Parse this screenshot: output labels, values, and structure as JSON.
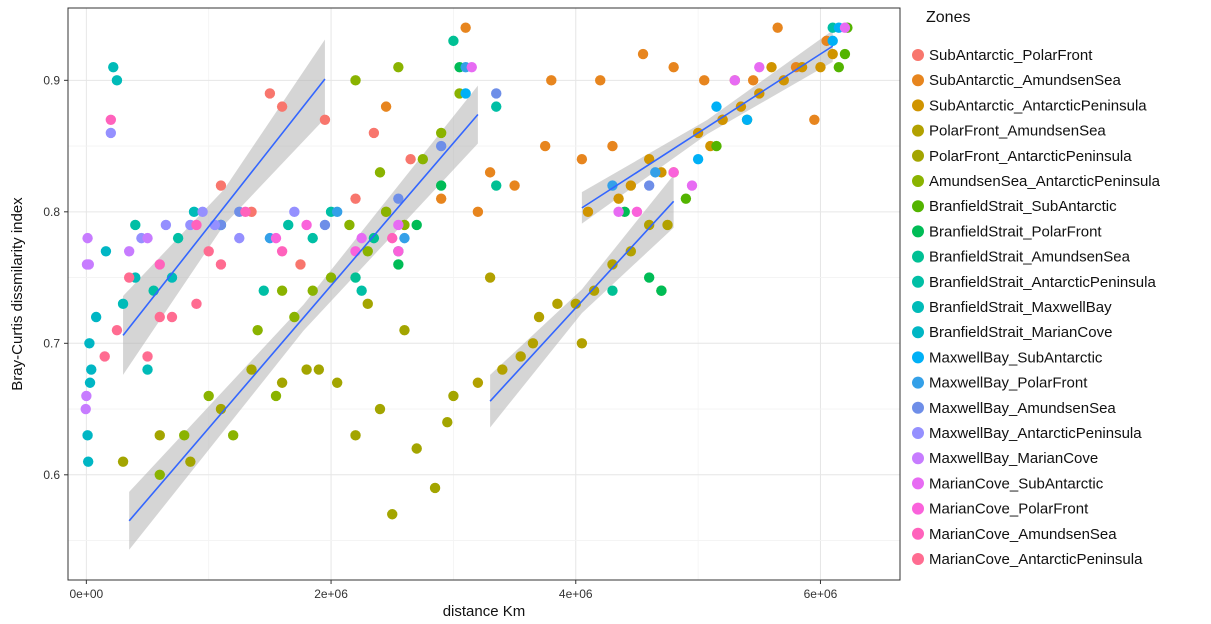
{
  "chart_data": {
    "type": "scatter",
    "xlabel": "distance Km",
    "ylabel": "Bray-Curtis dissmilarity index",
    "xlim": [
      -150000,
      6650000
    ],
    "ylim": [
      0.52,
      0.955
    ],
    "x_ticks": [
      0,
      2000000,
      4000000,
      6000000
    ],
    "x_tick_labels": [
      "0e+00",
      "2e+06",
      "4e+06",
      "6e+06"
    ],
    "y_ticks": [
      0.6,
      0.7,
      0.8,
      0.9
    ],
    "y_tick_labels": [
      "0.6",
      "0.7",
      "0.8",
      "0.9"
    ],
    "grid": true,
    "legend": {
      "title": "Zones",
      "placement": "right",
      "entries": [
        {
          "name": "SubAntarctic_PolarFront",
          "color": "#f8766d"
        },
        {
          "name": "SubAntarctic_AmundsenSea",
          "color": "#e7851e"
        },
        {
          "name": "SubAntarctic_AntarcticPeninsula",
          "color": "#d09400"
        },
        {
          "name": "PolarFront_AmundsenSea",
          "color": "#b2a100"
        },
        {
          "name": "PolarFront_AntarcticPeninsula",
          "color": "#a3a500"
        },
        {
          "name": "AmundsenSea_AntarcticPeninsula",
          "color": "#8ab300"
        },
        {
          "name": "BranfieldStrait_SubAntarctic",
          "color": "#53b400"
        },
        {
          "name": "BranfieldStrait_PolarFront",
          "color": "#00bc56"
        },
        {
          "name": "BranfieldStrait_AmundsenSea",
          "color": "#00c094"
        },
        {
          "name": "BranfieldStrait_AntarcticPeninsula",
          "color": "#00bfa5"
        },
        {
          "name": "BranfieldStrait_MaxwellBay",
          "color": "#00bbb8"
        },
        {
          "name": "BranfieldStrait_MarianCove",
          "color": "#00b6c4"
        },
        {
          "name": "MaxwellBay_SubAntarctic",
          "color": "#00b0f6"
        },
        {
          "name": "MaxwellBay_PolarFront",
          "color": "#34a0e8"
        },
        {
          "name": "MaxwellBay_AmundsenSea",
          "color": "#6e8ee8"
        },
        {
          "name": "MaxwellBay_AntarcticPeninsula",
          "color": "#9590ff"
        },
        {
          "name": "MaxwellBay_MarianCove",
          "color": "#c77cff"
        },
        {
          "name": "MarianCove_SubAntarctic",
          "color": "#e76bf3"
        },
        {
          "name": "MarianCove_PolarFront",
          "color": "#fa62db"
        },
        {
          "name": "MarianCove_AmundsenSea",
          "color": "#ff62bc"
        },
        {
          "name": "MarianCove_AntarcticPeninsula",
          "color": "#ff6c91"
        }
      ]
    },
    "regression_lines": [
      {
        "x": [
          300000,
          1950000
        ],
        "y": [
          0.706,
          0.901
        ],
        "band": 0.03
      },
      {
        "x": [
          350000,
          3200000
        ],
        "y": [
          0.565,
          0.874
        ],
        "band": 0.022
      },
      {
        "x": [
          3300000,
          4800000
        ],
        "y": [
          0.656,
          0.808
        ],
        "band": 0.02
      },
      {
        "x": [
          4050000,
          6100000
        ],
        "y": [
          0.803,
          0.926
        ],
        "band": 0.012
      }
    ],
    "series": [
      {
        "name": "SubAntarctic_PolarFront",
        "x": [
          1100000,
          1350000,
          1600000,
          1750000,
          1950000,
          2200000,
          2450000,
          2650000,
          2350000,
          1500000
        ],
        "y": [
          0.82,
          0.8,
          0.88,
          0.76,
          0.87,
          0.81,
          0.8,
          0.84,
          0.86,
          0.89
        ]
      },
      {
        "name": "SubAntarctic_AmundsenSea",
        "x": [
          2450000,
          2900000,
          3100000,
          3200000,
          3300000,
          3750000,
          4050000,
          4300000,
          4550000,
          4800000,
          5050000,
          5200000,
          5450000,
          5650000,
          5800000,
          5950000,
          6050000,
          3500000,
          3800000,
          4200000
        ],
        "y": [
          0.88,
          0.81,
          0.94,
          0.8,
          0.83,
          0.85,
          0.84,
          0.85,
          0.92,
          0.91,
          0.9,
          0.87,
          0.9,
          0.94,
          0.91,
          0.87,
          0.93,
          0.82,
          0.9,
          0.9
        ]
      },
      {
        "name": "SubAntarctic_AntarcticPeninsula",
        "x": [
          4100000,
          4350000,
          4600000,
          4800000,
          5000000,
          5200000,
          5350000,
          5500000,
          5700000,
          5850000,
          6000000,
          6100000,
          4700000,
          5100000,
          5300000,
          5600000,
          4450000
        ],
        "y": [
          0.8,
          0.81,
          0.84,
          0.83,
          0.86,
          0.87,
          0.88,
          0.89,
          0.9,
          0.91,
          0.91,
          0.92,
          0.83,
          0.85,
          0.9,
          0.91,
          0.82
        ]
      },
      {
        "name": "PolarFront_AmundsenSea",
        "x": [
          3200000,
          3400000,
          3550000,
          3700000,
          3850000,
          4000000,
          4150000,
          4300000,
          4450000,
          4600000,
          4750000,
          3300000,
          3650000,
          4050000
        ],
        "y": [
          0.67,
          0.68,
          0.69,
          0.72,
          0.73,
          0.73,
          0.74,
          0.76,
          0.77,
          0.79,
          0.79,
          0.75,
          0.7,
          0.7
        ]
      },
      {
        "name": "PolarFront_AntarcticPeninsula",
        "x": [
          300000,
          600000,
          850000,
          1100000,
          1350000,
          1600000,
          1800000,
          2050000,
          2200000,
          2400000,
          2600000,
          2700000,
          2850000,
          3000000,
          2500000,
          2950000,
          2300000,
          1900000
        ],
        "y": [
          0.61,
          0.63,
          0.61,
          0.65,
          0.68,
          0.67,
          0.68,
          0.67,
          0.63,
          0.65,
          0.71,
          0.62,
          0.59,
          0.66,
          0.57,
          0.64,
          0.73,
          0.68
        ]
      },
      {
        "name": "AmundsenSea_AntarcticPeninsula",
        "x": [
          600000,
          800000,
          1000000,
          1200000,
          1400000,
          1550000,
          1700000,
          1850000,
          2000000,
          2150000,
          2300000,
          2450000,
          2600000,
          2750000,
          2900000,
          3050000,
          2200000,
          2400000,
          2550000,
          1600000
        ],
        "y": [
          0.6,
          0.63,
          0.66,
          0.63,
          0.71,
          0.66,
          0.72,
          0.74,
          0.75,
          0.79,
          0.77,
          0.8,
          0.79,
          0.84,
          0.86,
          0.89,
          0.9,
          0.83,
          0.91,
          0.74
        ]
      },
      {
        "name": "BranfieldStrait_SubAntarctic",
        "x": [
          4700000,
          4900000,
          5150000,
          5400000,
          6150000,
          6200000,
          6220000
        ],
        "y": [
          0.74,
          0.81,
          0.85,
          0.87,
          0.91,
          0.92,
          0.94
        ]
      },
      {
        "name": "BranfieldStrait_PolarFront",
        "x": [
          2550000,
          2700000,
          2900000,
          3050000,
          4400000,
          4600000,
          4700000
        ],
        "y": [
          0.76,
          0.79,
          0.82,
          0.91,
          0.8,
          0.75,
          0.74
        ]
      },
      {
        "name": "BranfieldStrait_AmundsenSea",
        "x": [
          2200000,
          2350000,
          2550000,
          3000000,
          3350000,
          4300000
        ],
        "y": [
          0.75,
          0.78,
          0.77,
          0.93,
          0.82,
          0.74
        ]
      },
      {
        "name": "BranfieldStrait_AntarcticPeninsula",
        "x": [
          400000,
          550000,
          750000,
          1450000,
          1650000,
          1850000,
          2000000,
          2250000,
          3350000,
          6100000
        ],
        "y": [
          0.79,
          0.74,
          0.78,
          0.74,
          0.79,
          0.78,
          0.8,
          0.74,
          0.88,
          0.94
        ]
      },
      {
        "name": "BranfieldStrait_MaxwellBay",
        "x": [
          220000,
          250000,
          300000,
          400000,
          500000,
          700000,
          880000,
          1100000
        ],
        "y": [
          0.91,
          0.9,
          0.73,
          0.75,
          0.68,
          0.75,
          0.8,
          0.79
        ]
      },
      {
        "name": "BranfieldStrait_MarianCove",
        "x": [
          10000,
          15000,
          25000,
          30000,
          40000,
          80000,
          160000
        ],
        "y": [
          0.63,
          0.61,
          0.7,
          0.67,
          0.68,
          0.72,
          0.77
        ]
      },
      {
        "name": "MaxwellBay_SubAntarctic",
        "x": [
          3100000,
          5000000,
          5150000,
          5400000,
          6100000,
          6150000
        ],
        "y": [
          0.89,
          0.84,
          0.88,
          0.87,
          0.93,
          0.94
        ]
      },
      {
        "name": "MaxwellBay_PolarFront",
        "x": [
          1500000,
          2050000,
          2600000,
          3100000,
          4300000,
          4650000
        ],
        "y": [
          0.78,
          0.8,
          0.78,
          0.91,
          0.82,
          0.83
        ]
      },
      {
        "name": "MaxwellBay_AmundsenSea",
        "x": [
          1100000,
          1250000,
          1950000,
          2550000,
          2900000,
          3350000,
          4600000
        ],
        "y": [
          0.79,
          0.8,
          0.79,
          0.81,
          0.85,
          0.89,
          0.82
        ]
      },
      {
        "name": "MaxwellBay_AntarcticPeninsula",
        "x": [
          200000,
          450000,
          650000,
          850000,
          950000,
          1050000,
          1250000,
          1700000
        ],
        "y": [
          0.86,
          0.78,
          0.79,
          0.79,
          0.8,
          0.79,
          0.78,
          0.8
        ]
      },
      {
        "name": "MaxwellBay_MarianCove",
        "x": [
          -5000,
          0,
          5000,
          10000,
          20000,
          350000,
          500000
        ],
        "y": [
          0.65,
          0.66,
          0.76,
          0.78,
          0.76,
          0.77,
          0.78
        ]
      },
      {
        "name": "MarianCove_SubAntarctic",
        "x": [
          2250000,
          2550000,
          3150000,
          4350000,
          4950000,
          5300000,
          5500000,
          6200000
        ],
        "y": [
          0.78,
          0.79,
          0.91,
          0.8,
          0.82,
          0.9,
          0.91,
          0.94
        ]
      },
      {
        "name": "MarianCove_PolarFront",
        "x": [
          1550000,
          1800000,
          2200000,
          2550000,
          4500000,
          4800000
        ],
        "y": [
          0.78,
          0.79,
          0.77,
          0.77,
          0.8,
          0.83
        ]
      },
      {
        "name": "MarianCove_AmundsenSea",
        "x": [
          200000,
          600000,
          900000,
          1300000,
          1600000,
          2500000
        ],
        "y": [
          0.87,
          0.76,
          0.79,
          0.8,
          0.77,
          0.78
        ]
      },
      {
        "name": "MarianCove_AntarcticPeninsula",
        "x": [
          150000,
          250000,
          350000,
          500000,
          600000,
          700000,
          900000,
          1000000,
          1100000
        ],
        "y": [
          0.69,
          0.71,
          0.75,
          0.69,
          0.72,
          0.72,
          0.73,
          0.77,
          0.76
        ]
      }
    ]
  }
}
